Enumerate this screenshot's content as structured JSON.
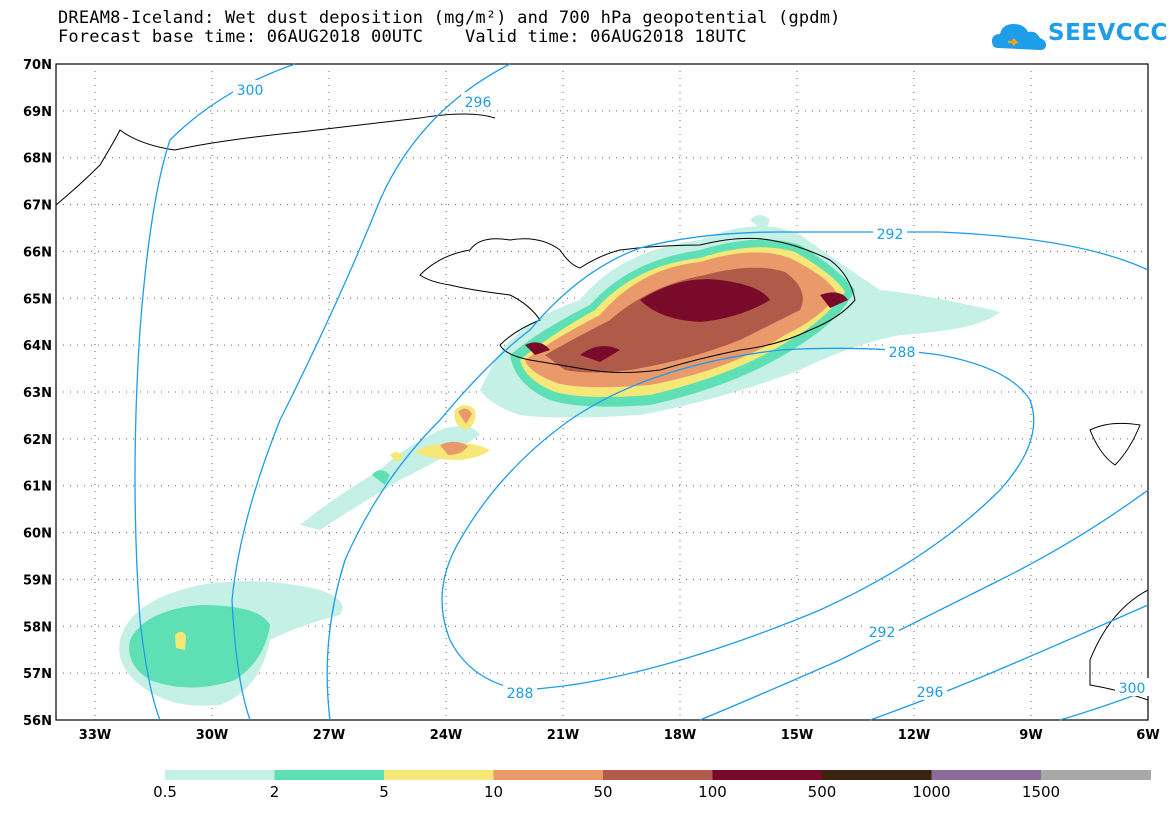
{
  "title": {
    "line1": "DREAM8-Iceland: Wet dust deposition (mg/m²) and 700 hPa geopotential (gpdm)",
    "line2": "Forecast base time: 06AUG2018 00UTC    Valid time: 06AUG2018 18UTC"
  },
  "logo": {
    "text": "SEEVCCC"
  },
  "axes": {
    "lat_labels": [
      "70N",
      "69N",
      "68N",
      "67N",
      "66N",
      "65N",
      "64N",
      "63N",
      "62N",
      "61N",
      "60N",
      "59N",
      "58N",
      "57N",
      "56N"
    ],
    "lon_labels": [
      "33W",
      "30W",
      "27W",
      "24W",
      "21W",
      "18W",
      "15W",
      "12W",
      "9W",
      "6W"
    ],
    "lat_range": [
      56,
      70
    ],
    "lon_range": [
      -34,
      -6
    ]
  },
  "contour_labels": [
    "300",
    "296",
    "292",
    "288",
    "288",
    "292",
    "296",
    "300"
  ],
  "colorbar": {
    "labels": [
      "0.5",
      "2",
      "5",
      "10",
      "50",
      "100",
      "500",
      "1000",
      "1500"
    ],
    "colors": [
      "#c4f0e6",
      "#5fe0b4",
      "#f6e878",
      "#ea9a6a",
      "#b05a4a",
      "#7a0a2a",
      "#3a2410",
      "#8e6a9c",
      "#a8a8a8"
    ]
  },
  "colors": {
    "contour": "#1e9de8",
    "coast": "#000000"
  }
}
